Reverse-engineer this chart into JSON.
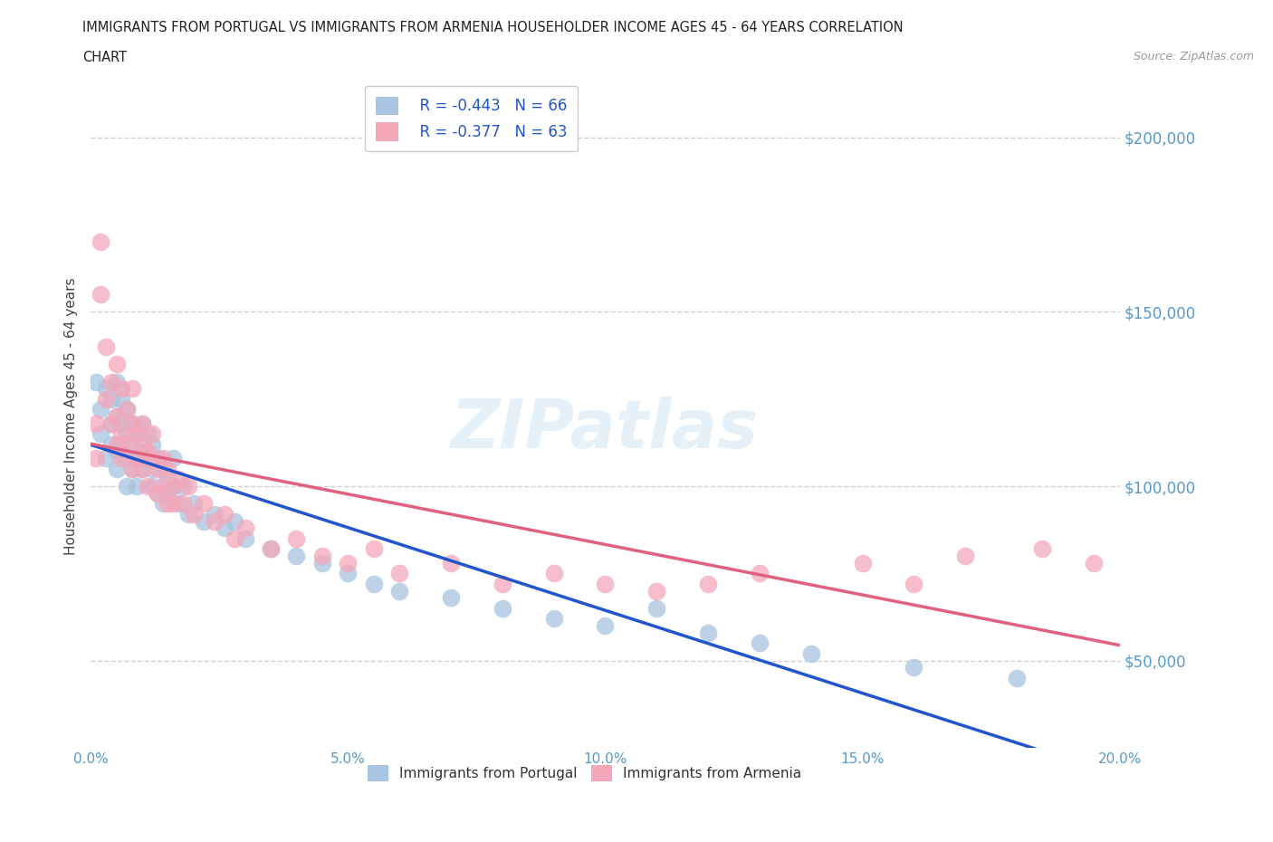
{
  "title_line1": "IMMIGRANTS FROM PORTUGAL VS IMMIGRANTS FROM ARMENIA HOUSEHOLDER INCOME AGES 45 - 64 YEARS CORRELATION",
  "title_line2": "CHART",
  "source": "Source: ZipAtlas.com",
  "ylabel": "Householder Income Ages 45 - 64 years",
  "xlim": [
    0.0,
    0.2
  ],
  "ylim": [
    25000,
    215000
  ],
  "yticks": [
    50000,
    100000,
    150000,
    200000
  ],
  "ytick_labels": [
    "$50,000",
    "$100,000",
    "$150,000",
    "$200,000"
  ],
  "xticks": [
    0.0,
    0.05,
    0.1,
    0.15,
    0.2
  ],
  "xtick_labels": [
    "0.0%",
    "5.0%",
    "10.0%",
    "15.0%",
    "20.0%"
  ],
  "legend_r1": "R = -0.443   N = 66",
  "legend_r2": "R = -0.377   N = 63",
  "color_portugal": "#a8c4e0",
  "color_armenia": "#f4a7b9",
  "line_color_portugal": "#2255cc",
  "line_color_armenia": "#e06080",
  "scatter_alpha": 0.75,
  "portugal_x": [
    0.001,
    0.002,
    0.002,
    0.003,
    0.003,
    0.004,
    0.004,
    0.004,
    0.005,
    0.005,
    0.005,
    0.005,
    0.006,
    0.006,
    0.006,
    0.007,
    0.007,
    0.007,
    0.007,
    0.008,
    0.008,
    0.008,
    0.009,
    0.009,
    0.009,
    0.01,
    0.01,
    0.01,
    0.011,
    0.011,
    0.012,
    0.012,
    0.012,
    0.013,
    0.013,
    0.014,
    0.014,
    0.015,
    0.015,
    0.016,
    0.016,
    0.017,
    0.018,
    0.019,
    0.02,
    0.022,
    0.024,
    0.026,
    0.028,
    0.03,
    0.035,
    0.04,
    0.045,
    0.05,
    0.055,
    0.06,
    0.07,
    0.08,
    0.09,
    0.1,
    0.11,
    0.12,
    0.13,
    0.14,
    0.16,
    0.18
  ],
  "portugal_y": [
    130000,
    122000,
    115000,
    128000,
    108000,
    125000,
    112000,
    118000,
    120000,
    110000,
    130000,
    105000,
    118000,
    112000,
    125000,
    115000,
    108000,
    122000,
    100000,
    118000,
    105000,
    112000,
    108000,
    115000,
    100000,
    110000,
    105000,
    118000,
    108000,
    115000,
    105000,
    100000,
    112000,
    108000,
    98000,
    105000,
    95000,
    102000,
    98000,
    100000,
    108000,
    95000,
    100000,
    92000,
    95000,
    90000,
    92000,
    88000,
    90000,
    85000,
    82000,
    80000,
    78000,
    75000,
    72000,
    70000,
    68000,
    65000,
    62000,
    60000,
    65000,
    58000,
    55000,
    52000,
    48000,
    45000
  ],
  "armenia_x": [
    0.001,
    0.001,
    0.002,
    0.002,
    0.003,
    0.003,
    0.004,
    0.004,
    0.005,
    0.005,
    0.005,
    0.006,
    0.006,
    0.006,
    0.007,
    0.007,
    0.008,
    0.008,
    0.008,
    0.009,
    0.009,
    0.01,
    0.01,
    0.01,
    0.011,
    0.011,
    0.012,
    0.012,
    0.013,
    0.013,
    0.014,
    0.014,
    0.015,
    0.015,
    0.016,
    0.016,
    0.017,
    0.018,
    0.019,
    0.02,
    0.022,
    0.024,
    0.026,
    0.028,
    0.03,
    0.035,
    0.04,
    0.045,
    0.05,
    0.055,
    0.06,
    0.07,
    0.08,
    0.09,
    0.1,
    0.11,
    0.12,
    0.13,
    0.15,
    0.16,
    0.17,
    0.185,
    0.195
  ],
  "armenia_y": [
    118000,
    108000,
    170000,
    155000,
    140000,
    125000,
    130000,
    118000,
    135000,
    120000,
    112000,
    128000,
    115000,
    108000,
    122000,
    112000,
    118000,
    105000,
    128000,
    115000,
    108000,
    118000,
    105000,
    112000,
    110000,
    100000,
    108000,
    115000,
    105000,
    98000,
    108000,
    100000,
    95000,
    105000,
    100000,
    95000,
    102000,
    95000,
    100000,
    92000,
    95000,
    90000,
    92000,
    85000,
    88000,
    82000,
    85000,
    80000,
    78000,
    82000,
    75000,
    78000,
    72000,
    75000,
    72000,
    70000,
    72000,
    75000,
    78000,
    72000,
    80000,
    82000,
    78000
  ],
  "watermark": "ZIPatlas",
  "background_color": "#ffffff",
  "grid_color": "#cccccc",
  "title_color": "#222222",
  "axis_label_color": "#444444",
  "tick_label_color": "#5599cc"
}
